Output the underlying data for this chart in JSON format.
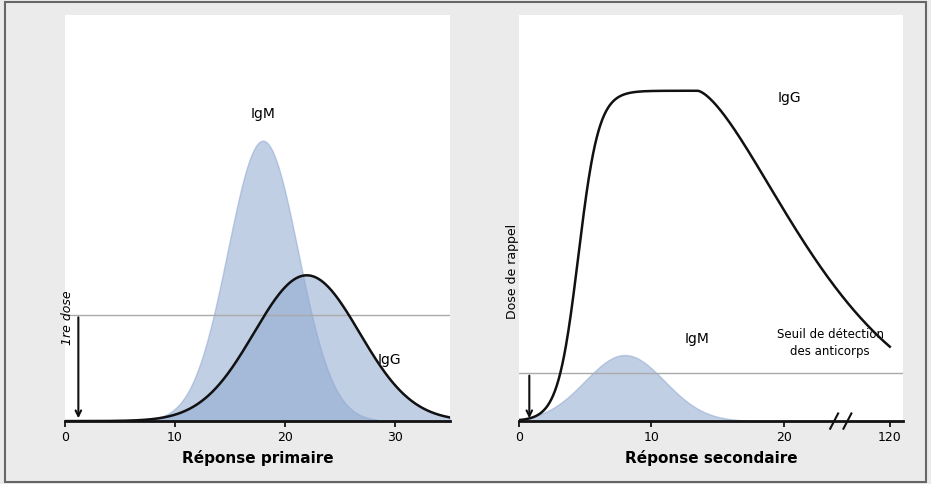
{
  "fig_bg": "#ebebeb",
  "ax_bg": "#ffffff",
  "threshold_color": "#aaaaaa",
  "fill_color": "#8fa8d0",
  "fill_alpha": 0.55,
  "line_color": "#111111",
  "xlabel_primary": "Réponse primaire",
  "xlabel_secondary": "Réponse secondaire",
  "label_IgM_primary": "IgM",
  "label_IgG_primary": "IgG",
  "label_IgM_secondary": "IgM",
  "label_IgG_secondary": "IgG",
  "label_dose1": "1re dose",
  "label_dose2": "Dose de rappel",
  "label_threshold": "Seuil de détection\ndes anticorps",
  "font_size_xlabel": 11,
  "font_size_axis": 9,
  "font_size_curve_labels": 10,
  "font_size_annot": 9
}
